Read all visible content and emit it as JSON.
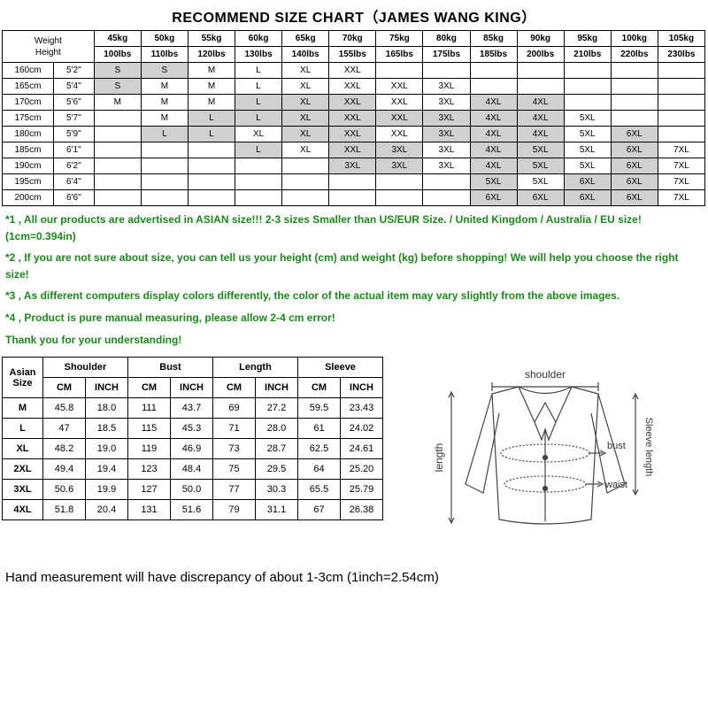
{
  "title": "RECOMMEND SIZE CHART（JAMES WANG KING）",
  "weightHeightLabel": "Weight\nHeight",
  "kg": [
    "45kg",
    "50kg",
    "55kg",
    "60kg",
    "65kg",
    "70kg",
    "75kg",
    "80kg",
    "85kg",
    "90kg",
    "95kg",
    "100kg",
    "105kg"
  ],
  "lbs": [
    "100lbs",
    "110lbs",
    "120lbs",
    "130lbs",
    "140lbs",
    "155lbs",
    "165lbs",
    "175lbs",
    "185lbs",
    "200lbs",
    "210lbs",
    "220lbs",
    "230lbs"
  ],
  "heights": [
    {
      "cm": "160cm",
      "ft": "5'2\""
    },
    {
      "cm": "165cm",
      "ft": "5'4\""
    },
    {
      "cm": "170cm",
      "ft": "5'6\""
    },
    {
      "cm": "175cm",
      "ft": "5'7\""
    },
    {
      "cm": "180cm",
      "ft": "5'9\""
    },
    {
      "cm": "185cm",
      "ft": "6'1\""
    },
    {
      "cm": "190cm",
      "ft": "6'2\""
    },
    {
      "cm": "195cm",
      "ft": "6'4\""
    },
    {
      "cm": "200cm",
      "ft": "6'6\""
    }
  ],
  "grid": [
    [
      {
        "v": "S",
        "s": 1
      },
      {
        "v": "S",
        "s": 1
      },
      {
        "v": "M"
      },
      {
        "v": "L"
      },
      {
        "v": "XL"
      },
      {
        "v": "XXL"
      },
      {
        "v": ""
      },
      {
        "v": ""
      },
      {
        "v": ""
      },
      {
        "v": ""
      },
      {
        "v": ""
      },
      {
        "v": ""
      },
      {
        "v": ""
      }
    ],
    [
      {
        "v": "S",
        "s": 1
      },
      {
        "v": "M"
      },
      {
        "v": "M"
      },
      {
        "v": "L"
      },
      {
        "v": "XL"
      },
      {
        "v": "XXL"
      },
      {
        "v": "XXL"
      },
      {
        "v": "3XL"
      },
      {
        "v": ""
      },
      {
        "v": ""
      },
      {
        "v": ""
      },
      {
        "v": ""
      },
      {
        "v": ""
      }
    ],
    [
      {
        "v": "M"
      },
      {
        "v": "M"
      },
      {
        "v": "M"
      },
      {
        "v": "L",
        "s": 1
      },
      {
        "v": "XL",
        "s": 1
      },
      {
        "v": "XXL",
        "s": 1
      },
      {
        "v": "XXL"
      },
      {
        "v": "3XL"
      },
      {
        "v": "4XL",
        "s": 1
      },
      {
        "v": "4XL",
        "s": 1
      },
      {
        "v": ""
      },
      {
        "v": ""
      },
      {
        "v": ""
      }
    ],
    [
      {
        "v": ""
      },
      {
        "v": "M"
      },
      {
        "v": "L",
        "s": 1
      },
      {
        "v": "L",
        "s": 1
      },
      {
        "v": "XL",
        "s": 1
      },
      {
        "v": "XXL",
        "s": 1
      },
      {
        "v": "XXL",
        "s": 1
      },
      {
        "v": "3XL",
        "s": 1
      },
      {
        "v": "4XL",
        "s": 1
      },
      {
        "v": "4XL",
        "s": 1
      },
      {
        "v": "5XL"
      },
      {
        "v": ""
      },
      {
        "v": ""
      }
    ],
    [
      {
        "v": ""
      },
      {
        "v": "L",
        "s": 1
      },
      {
        "v": "L",
        "s": 1
      },
      {
        "v": "XL"
      },
      {
        "v": "XL",
        "s": 1
      },
      {
        "v": "XXL",
        "s": 1
      },
      {
        "v": "XXL"
      },
      {
        "v": "3XL",
        "s": 1
      },
      {
        "v": "4XL",
        "s": 1
      },
      {
        "v": "4XL",
        "s": 1
      },
      {
        "v": "5XL"
      },
      {
        "v": "6XL",
        "s": 1
      },
      {
        "v": ""
      }
    ],
    [
      {
        "v": ""
      },
      {
        "v": ""
      },
      {
        "v": ""
      },
      {
        "v": "L",
        "s": 1
      },
      {
        "v": "XL"
      },
      {
        "v": "XXL",
        "s": 1
      },
      {
        "v": "3XL",
        "s": 1
      },
      {
        "v": "3XL"
      },
      {
        "v": "4XL",
        "s": 1
      },
      {
        "v": "5XL",
        "s": 1
      },
      {
        "v": "5XL"
      },
      {
        "v": "6XL",
        "s": 1
      },
      {
        "v": "7XL"
      }
    ],
    [
      {
        "v": ""
      },
      {
        "v": ""
      },
      {
        "v": ""
      },
      {
        "v": ""
      },
      {
        "v": ""
      },
      {
        "v": "3XL",
        "s": 1
      },
      {
        "v": "3XL",
        "s": 1
      },
      {
        "v": "3XL"
      },
      {
        "v": "4XL",
        "s": 1
      },
      {
        "v": "5XL",
        "s": 1
      },
      {
        "v": "5XL"
      },
      {
        "v": "6XL",
        "s": 1
      },
      {
        "v": "7XL"
      }
    ],
    [
      {
        "v": ""
      },
      {
        "v": ""
      },
      {
        "v": ""
      },
      {
        "v": ""
      },
      {
        "v": ""
      },
      {
        "v": ""
      },
      {
        "v": ""
      },
      {
        "v": ""
      },
      {
        "v": "5XL",
        "s": 1
      },
      {
        "v": "5XL"
      },
      {
        "v": "6XL",
        "s": 1
      },
      {
        "v": "6XL",
        "s": 1
      },
      {
        "v": "7XL"
      }
    ],
    [
      {
        "v": ""
      },
      {
        "v": ""
      },
      {
        "v": ""
      },
      {
        "v": ""
      },
      {
        "v": ""
      },
      {
        "v": ""
      },
      {
        "v": ""
      },
      {
        "v": ""
      },
      {
        "v": "6XL",
        "s": 1
      },
      {
        "v": "6XL",
        "s": 1
      },
      {
        "v": "6XL",
        "s": 1
      },
      {
        "v": "6XL",
        "s": 1
      },
      {
        "v": "7XL"
      }
    ]
  ],
  "notes": [
    "*1 , All our products are advertised in ASIAN size!!! 2-3 sizes Smaller than US/EUR Size. / United Kingdom / Australia / EU size! (1cm=0.394in)",
    "*2 , If you are not sure about size, you can tell us your height (cm) and weight (kg) before shopping! We will help you choose the right size!",
    "*3 , As different computers display colors differently, the color of the actual item may vary slightly from the above images.",
    "*4 , Product is pure manual measuring, please allow 2-4 cm error!",
    "Thank you for your understanding!"
  ],
  "measHeaders": {
    "size": "Asian Size",
    "groups": [
      "Shoulder",
      "Bust",
      "Length",
      "Sleeve"
    ],
    "units": [
      "CM",
      "INCH"
    ]
  },
  "measRows": [
    {
      "size": "M",
      "vals": [
        "45.8",
        "18.0",
        "111",
        "43.7",
        "69",
        "27.2",
        "59.5",
        "23.43"
      ]
    },
    {
      "size": "L",
      "vals": [
        "47",
        "18.5",
        "115",
        "45.3",
        "71",
        "28.0",
        "61",
        "24.02"
      ]
    },
    {
      "size": "XL",
      "vals": [
        "48.2",
        "19.0",
        "119",
        "46.9",
        "73",
        "28.7",
        "62.5",
        "24.61"
      ]
    },
    {
      "size": "2XL",
      "vals": [
        "49.4",
        "19.4",
        "123",
        "48.4",
        "75",
        "29.5",
        "64",
        "25.20"
      ]
    },
    {
      "size": "3XL",
      "vals": [
        "50.6",
        "19.9",
        "127",
        "50.0",
        "77",
        "30.3",
        "65.5",
        "25.79"
      ]
    },
    {
      "size": "4XL",
      "vals": [
        "51.8",
        "20.4",
        "131",
        "51.6",
        "79",
        "31.1",
        "67",
        "26.38"
      ]
    }
  ],
  "diagramLabels": {
    "shoulder": "shoulder",
    "length": "length",
    "bust": "bust",
    "waist": "waist",
    "sleeve": "Sleeve length"
  },
  "footer": "Hand measurement will have discrepancy of about 1-3cm (1inch=2.54cm)",
  "colors": {
    "shaded": "#d0d0d0",
    "noteText": "#1a8a1a",
    "border": "#000000",
    "bg": "#ffffff"
  }
}
